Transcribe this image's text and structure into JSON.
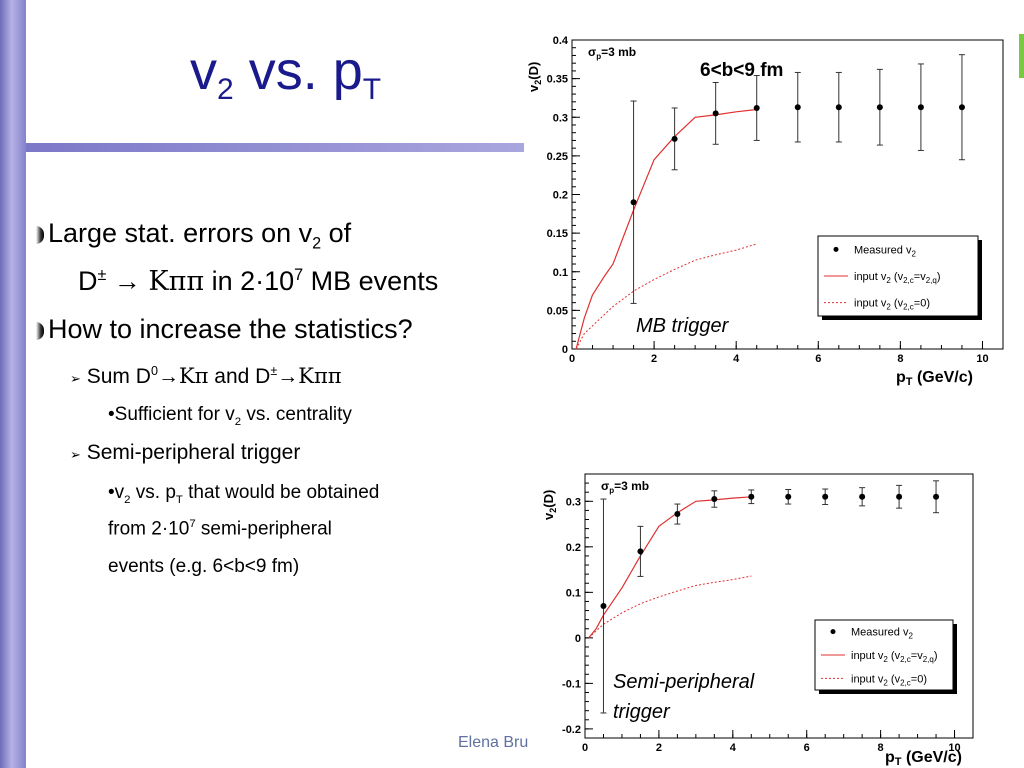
{
  "slide": {
    "title_main": "v",
    "title_sub": "2",
    "title_mid": " vs. p",
    "title_sub2": "T",
    "footer": "Elena Bru"
  },
  "bullets": {
    "b1_text": "Large stat. errors on v",
    "b1_sub": "2",
    "b1_tail": "  of",
    "b1_line2_a": "D",
    "b1_line2_sup": "±",
    "b1_line2_arrow": " → ",
    "b1_line2_greek": "Kππ",
    "b1_line2_b": " in 2·10",
    "b1_line2_sup2": "7",
    "b1_line2_c": " MB events",
    "b2_text": "How to increase the statistics?",
    "s1_a": "Sum D",
    "s1_sup": "0",
    "s1_arrow": "→",
    "s1_greek": "Kπ",
    "s1_b": " and D",
    "s1_sup2": "±",
    "s1_arrow2": "→",
    "s1_greek2": "Kππ",
    "s1_sub_a": "•Sufficient for v",
    "s1_sub_sub": "2",
    "s1_sub_b": " vs. centrality",
    "s2_text": "Semi-peripheral trigger",
    "s2_sub_a": "•v",
    "s2_sub_sub": "2",
    "s2_sub_b": " vs. p",
    "s2_sub_sub2": "T",
    "s2_sub_c": " that would be obtained",
    "s2_line2_a": "from 2·10",
    "s2_line2_sup": "7",
    "s2_line2_b": " semi-peripheral",
    "s2_line3": "events (e.g. 6<b<9 fm)"
  },
  "chart_data": [
    {
      "type": "scatter",
      "title": "6<b<9 fm",
      "ylabel": "v2(D)",
      "xlabel": "pT (GeV/c)",
      "xlim": [
        0,
        10.5
      ],
      "ylim": [
        0,
        0.4
      ],
      "xticks": [
        0,
        2,
        4,
        6,
        8,
        10
      ],
      "yticks": [
        0,
        0.05,
        0.1,
        0.15,
        0.2,
        0.25,
        0.3,
        0.35,
        0.4
      ],
      "sigma_label": "σp=3 mb",
      "annotation": "MB trigger",
      "legend_position": "bottom-right",
      "legend": [
        "Measured v2",
        "input v2 (v2,c=v2,q)",
        "input v2 (v2,c=0)"
      ],
      "points": {
        "x": [
          1.5,
          2.5,
          3.5,
          4.5,
          5.5,
          6.5,
          7.5,
          8.5,
          9.5
        ],
        "y": [
          0.19,
          0.272,
          0.305,
          0.312,
          0.313,
          0.313,
          0.313,
          0.313,
          0.313
        ],
        "err": [
          0.131,
          0.04,
          0.04,
          0.042,
          0.045,
          0.045,
          0.049,
          0.056,
          0.068
        ]
      },
      "curve_cq": {
        "x": [
          0.1,
          0.3,
          0.5,
          0.8,
          1.0,
          1.5,
          2.0,
          2.5,
          3.0,
          3.5,
          4.0,
          4.5
        ],
        "y": [
          0.0,
          0.04,
          0.07,
          0.095,
          0.11,
          0.18,
          0.245,
          0.275,
          0.3,
          0.303,
          0.307,
          0.31
        ]
      },
      "curve_c0": {
        "x": [
          0.1,
          0.3,
          0.5,
          1.0,
          1.5,
          2.0,
          2.5,
          3.0,
          3.5,
          4.0,
          4.5
        ],
        "y": [
          0.0,
          0.02,
          0.03,
          0.055,
          0.075,
          0.09,
          0.103,
          0.115,
          0.122,
          0.128,
          0.136
        ]
      },
      "colors": {
        "points": "#000000",
        "curve": "#e03030"
      }
    },
    {
      "type": "scatter",
      "ylabel": "v2(D)",
      "xlabel": "pT (GeV/c)",
      "xlim": [
        0,
        10.5
      ],
      "ylim": [
        -0.22,
        0.36
      ],
      "xticks": [
        0,
        2,
        4,
        6,
        8,
        10
      ],
      "yticks": [
        -0.2,
        -0.1,
        0,
        0.1,
        0.2,
        0.3
      ],
      "sigma_label": "σp=3 mb",
      "annotation": "Semi-peripheral trigger",
      "legend_position": "bottom-right",
      "legend": [
        "Measured v2",
        "input v2 (v2,c=v2,q)",
        "input v2 (v2,c=0)"
      ],
      "points": {
        "x": [
          0.5,
          1.5,
          2.5,
          3.5,
          4.5,
          5.5,
          6.5,
          7.5,
          8.5,
          9.5
        ],
        "y": [
          0.07,
          0.19,
          0.272,
          0.305,
          0.31,
          0.31,
          0.31,
          0.31,
          0.31,
          0.31
        ],
        "err": [
          0.235,
          0.055,
          0.022,
          0.018,
          0.015,
          0.016,
          0.017,
          0.02,
          0.025,
          0.035
        ]
      },
      "curve_cq": {
        "x": [
          0.1,
          0.3,
          0.5,
          1.0,
          1.5,
          2.0,
          2.5,
          3.0,
          3.5,
          4.0,
          4.5
        ],
        "y": [
          0.0,
          0.02,
          0.05,
          0.11,
          0.18,
          0.245,
          0.275,
          0.3,
          0.303,
          0.307,
          0.31
        ]
      },
      "curve_c0": {
        "x": [
          0.1,
          0.3,
          0.5,
          1.0,
          1.5,
          2.0,
          2.5,
          3.0,
          3.5,
          4.0,
          4.5
        ],
        "y": [
          0.0,
          0.015,
          0.03,
          0.055,
          0.075,
          0.09,
          0.103,
          0.115,
          0.122,
          0.128,
          0.136
        ]
      },
      "colors": {
        "points": "#000000",
        "curve": "#e03030"
      }
    }
  ]
}
